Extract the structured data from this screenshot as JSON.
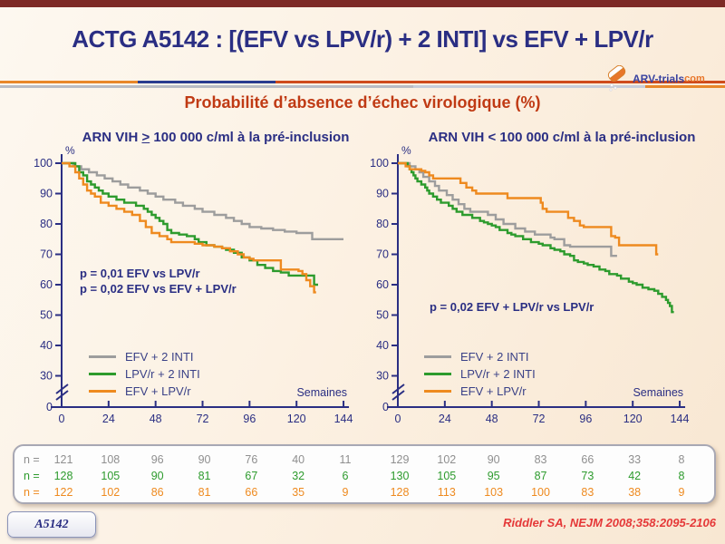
{
  "header": {
    "title": "ACTG A5142 : [(EFV vs LPV/r) + 2 INTI] vs EFV + LPV/r",
    "logo_text": "ARV-trials",
    "logo_suffix": "com"
  },
  "subtitle": "Probabilité d’absence d’échec virologique (%)",
  "colors": {
    "topbar": "#7d2a26",
    "accent_navy": "#2a2e83",
    "subtitle_rust": "#c03a14",
    "curve_gray": "#9d9d9d",
    "curve_green": "#2d9b2d",
    "curve_orange": "#ee8a1f",
    "citation_red": "#e53838"
  },
  "chart_data": [
    {
      "type": "line",
      "title": "ARN VIH ≥ 100 000 c/ml à la pré-inclusion",
      "title_parts": {
        "prefix": "ARN VIH ",
        "comparator": ">",
        "suffix": " 100 000 c/ml à la pré-inclusion"
      },
      "xlabel": "Semaines",
      "ylabel": "%",
      "xlim": [
        0,
        144
      ],
      "ylim": [
        0,
        100
      ],
      "y_break_between": [
        0,
        30
      ],
      "x_ticks": [
        0,
        24,
        48,
        72,
        96,
        120,
        144
      ],
      "y_ticks": [
        100,
        90,
        80,
        70,
        60,
        50,
        40,
        30,
        0
      ],
      "annotations": [
        "p = 0,01 EFV vs LPV/r",
        "p = 0,02 EFV vs EFV + LPV/r"
      ],
      "legend": [
        {
          "name": "EFV + 2 INTI",
          "color": "#9d9d9d"
        },
        {
          "name": "LPV/r + 2 INTI",
          "color": "#2d9b2d"
        },
        {
          "name": "EFV + LPV/r",
          "color": "#ee8a1f"
        }
      ],
      "series": [
        {
          "name": "EFV + 2 INTI",
          "color": "#9d9d9d",
          "points": [
            [
              0,
              100
            ],
            [
              6,
              99
            ],
            [
              10,
              98
            ],
            [
              14,
              97
            ],
            [
              18,
              96
            ],
            [
              22,
              95
            ],
            [
              26,
              94
            ],
            [
              30,
              93
            ],
            [
              34,
              92
            ],
            [
              40,
              91
            ],
            [
              44,
              90
            ],
            [
              48,
              89
            ],
            [
              52,
              88
            ],
            [
              58,
              87
            ],
            [
              62,
              86
            ],
            [
              68,
              85
            ],
            [
              72,
              84
            ],
            [
              78,
              83
            ],
            [
              84,
              82
            ],
            [
              88,
              81
            ],
            [
              92,
              80
            ],
            [
              96,
              79
            ],
            [
              102,
              78.5
            ],
            [
              108,
              78
            ],
            [
              114,
              77.5
            ],
            [
              120,
              77
            ],
            [
              128,
              75
            ],
            [
              144,
              75
            ]
          ]
        },
        {
          "name": "LPV/r + 2 INTI",
          "color": "#2d9b2d",
          "points": [
            [
              0,
              100
            ],
            [
              7,
              99
            ],
            [
              9,
              97
            ],
            [
              11,
              96
            ],
            [
              13,
              94
            ],
            [
              15,
              93
            ],
            [
              17,
              92
            ],
            [
              19,
              91
            ],
            [
              21,
              90
            ],
            [
              24,
              89
            ],
            [
              28,
              88
            ],
            [
              32,
              87
            ],
            [
              38,
              86
            ],
            [
              42,
              85
            ],
            [
              44,
              84
            ],
            [
              46,
              83
            ],
            [
              48,
              82
            ],
            [
              50,
              81
            ],
            [
              52,
              80
            ],
            [
              54,
              78
            ],
            [
              56,
              77
            ],
            [
              60,
              76.5
            ],
            [
              64,
              76
            ],
            [
              68,
              75
            ],
            [
              70,
              74
            ],
            [
              74,
              73
            ],
            [
              78,
              72.5
            ],
            [
              82,
              72
            ],
            [
              84,
              71.5
            ],
            [
              88,
              70.5
            ],
            [
              92,
              69
            ],
            [
              96,
              68
            ],
            [
              100,
              66.5
            ],
            [
              104,
              65.5
            ],
            [
              108,
              64.5
            ],
            [
              112,
              64
            ],
            [
              116,
              63
            ],
            [
              128,
              63
            ],
            [
              129,
              60
            ],
            [
              131,
              60
            ]
          ]
        },
        {
          "name": "EFV + LPV/r",
          "color": "#ee8a1f",
          "points": [
            [
              0,
              100
            ],
            [
              4,
              99
            ],
            [
              7,
              97
            ],
            [
              9,
              95
            ],
            [
              11,
              93
            ],
            [
              13,
              91
            ],
            [
              15,
              90
            ],
            [
              17,
              89
            ],
            [
              20,
              87
            ],
            [
              24,
              86
            ],
            [
              28,
              85
            ],
            [
              32,
              84
            ],
            [
              36,
              83
            ],
            [
              40,
              81
            ],
            [
              43,
              79
            ],
            [
              46,
              77
            ],
            [
              50,
              76
            ],
            [
              54,
              75
            ],
            [
              56,
              74
            ],
            [
              68,
              73.5
            ],
            [
              72,
              73
            ],
            [
              78,
              72.5
            ],
            [
              82,
              72
            ],
            [
              86,
              71
            ],
            [
              90,
              70
            ],
            [
              93,
              69
            ],
            [
              96,
              68.5
            ],
            [
              98,
              68
            ],
            [
              111,
              68
            ],
            [
              112,
              65
            ],
            [
              121,
              64.5
            ],
            [
              123,
              63.5
            ],
            [
              125,
              61.5
            ],
            [
              127,
              59.5
            ],
            [
              129,
              57.5
            ],
            [
              130,
              57.5
            ]
          ]
        }
      ]
    },
    {
      "type": "line",
      "title": "ARN VIH < 100 000 c/ml à la pré-inclusion",
      "title_parts": {
        "prefix": "ARN VIH ",
        "comparator": "<",
        "suffix": " 100 000 c/ml à la pré-inclusion"
      },
      "xlabel": "Semaines",
      "ylabel": "%",
      "xlim": [
        0,
        144
      ],
      "ylim": [
        0,
        100
      ],
      "y_break_between": [
        0,
        30
      ],
      "x_ticks": [
        0,
        24,
        48,
        72,
        96,
        120,
        144
      ],
      "y_ticks": [
        100,
        90,
        80,
        70,
        60,
        50,
        40,
        30,
        0
      ],
      "annotations": [
        "p = 0,02 EFV + LPV/r vs LPV/r"
      ],
      "legend": [
        {
          "name": "EFV + 2 INTI",
          "color": "#9d9d9d"
        },
        {
          "name": "LPV/r + 2 INTI",
          "color": "#2d9b2d"
        },
        {
          "name": "EFV + LPV/r",
          "color": "#ee8a1f"
        }
      ],
      "series": [
        {
          "name": "EFV + 2 INTI",
          "color": "#9d9d9d",
          "points": [
            [
              0,
              100
            ],
            [
              6,
              99
            ],
            [
              9,
              98
            ],
            [
              11,
              97
            ],
            [
              13,
              95.5
            ],
            [
              16,
              94
            ],
            [
              19,
              92.5
            ],
            [
              21,
              91
            ],
            [
              25,
              89.5
            ],
            [
              28,
              88
            ],
            [
              31,
              86.5
            ],
            [
              34,
              85
            ],
            [
              37,
              84
            ],
            [
              44,
              84
            ],
            [
              46,
              83
            ],
            [
              50,
              81.5
            ],
            [
              54,
              80
            ],
            [
              60,
              78.5
            ],
            [
              65,
              77.5
            ],
            [
              70,
              76.5
            ],
            [
              78,
              75.5
            ],
            [
              80,
              75
            ],
            [
              85,
              73
            ],
            [
              88,
              72.5
            ],
            [
              108,
              72.5
            ],
            [
              109,
              69.5
            ],
            [
              112,
              69.5
            ]
          ]
        },
        {
          "name": "LPV/r + 2 INTI",
          "color": "#2d9b2d",
          "points": [
            [
              0,
              100
            ],
            [
              5,
              99
            ],
            [
              6,
              98
            ],
            [
              7,
              97
            ],
            [
              8,
              96
            ],
            [
              9,
              95
            ],
            [
              10,
              94
            ],
            [
              12,
              93
            ],
            [
              14,
              92
            ],
            [
              15,
              91
            ],
            [
              16,
              90
            ],
            [
              18,
              89
            ],
            [
              20,
              88
            ],
            [
              22,
              87
            ],
            [
              26,
              86
            ],
            [
              28,
              85
            ],
            [
              30,
              84
            ],
            [
              33,
              83
            ],
            [
              38,
              82
            ],
            [
              42,
              81
            ],
            [
              44,
              80.5
            ],
            [
              46,
              80
            ],
            [
              48,
              79.5
            ],
            [
              50,
              79
            ],
            [
              52,
              78
            ],
            [
              56,
              77
            ],
            [
              58,
              76.5
            ],
            [
              60,
              76
            ],
            [
              64,
              75
            ],
            [
              68,
              74
            ],
            [
              72,
              73.5
            ],
            [
              74,
              73
            ],
            [
              78,
              72
            ],
            [
              80,
              71.5
            ],
            [
              83,
              71
            ],
            [
              85,
              70
            ],
            [
              88,
              69.5
            ],
            [
              90,
              68
            ],
            [
              92,
              67.5
            ],
            [
              95,
              67
            ],
            [
              97,
              66.5
            ],
            [
              100,
              66
            ],
            [
              103,
              65
            ],
            [
              106,
              64.5
            ],
            [
              108,
              63.5
            ],
            [
              112,
              63
            ],
            [
              114,
              62
            ],
            [
              118,
              61
            ],
            [
              120,
              60.5
            ],
            [
              122,
              60
            ],
            [
              125,
              59
            ],
            [
              128,
              58.5
            ],
            [
              131,
              58
            ],
            [
              133,
              57
            ],
            [
              135,
              56
            ],
            [
              137,
              55
            ],
            [
              138,
              54
            ],
            [
              139,
              53
            ],
            [
              140,
              51
            ],
            [
              141,
              51
            ]
          ]
        },
        {
          "name": "EFV + LPV/r",
          "color": "#ee8a1f",
          "points": [
            [
              0,
              100
            ],
            [
              4,
              99
            ],
            [
              6,
              98
            ],
            [
              12,
              97.5
            ],
            [
              14,
              97
            ],
            [
              16,
              96
            ],
            [
              18,
              95
            ],
            [
              30,
              95
            ],
            [
              32,
              93.5
            ],
            [
              35,
              92
            ],
            [
              38,
              91
            ],
            [
              40,
              90
            ],
            [
              54,
              90
            ],
            [
              56,
              88.5
            ],
            [
              71,
              88.5
            ],
            [
              73,
              87
            ],
            [
              74,
              85
            ],
            [
              76,
              84
            ],
            [
              85,
              84
            ],
            [
              87,
              82
            ],
            [
              90,
              81
            ],
            [
              93,
              79.5
            ],
            [
              95,
              79
            ],
            [
              107,
              79
            ],
            [
              109,
              76
            ],
            [
              111,
              75.5
            ],
            [
              113,
              73
            ],
            [
              131,
              73
            ],
            [
              132,
              70
            ],
            [
              133,
              70
            ]
          ]
        }
      ]
    }
  ],
  "table": {
    "rows": [
      {
        "label": "n =",
        "color": "#8f8f8f",
        "values": [
          121,
          108,
          96,
          90,
          76,
          40,
          11,
          129,
          102,
          90,
          83,
          66,
          33,
          8
        ]
      },
      {
        "label": "n =",
        "color": "#2d9b2d",
        "values": [
          128,
          105,
          90,
          81,
          67,
          32,
          6,
          130,
          105,
          95,
          87,
          73,
          42,
          8
        ]
      },
      {
        "label": "n =",
        "color": "#ee8a1f",
        "values": [
          122,
          102,
          86,
          81,
          66,
          35,
          9,
          128,
          113,
          103,
          100,
          83,
          38,
          9
        ]
      }
    ]
  },
  "footer": {
    "badge": "A5142",
    "citation": "Riddler SA, NEJM 2008;358:2095-2106"
  }
}
